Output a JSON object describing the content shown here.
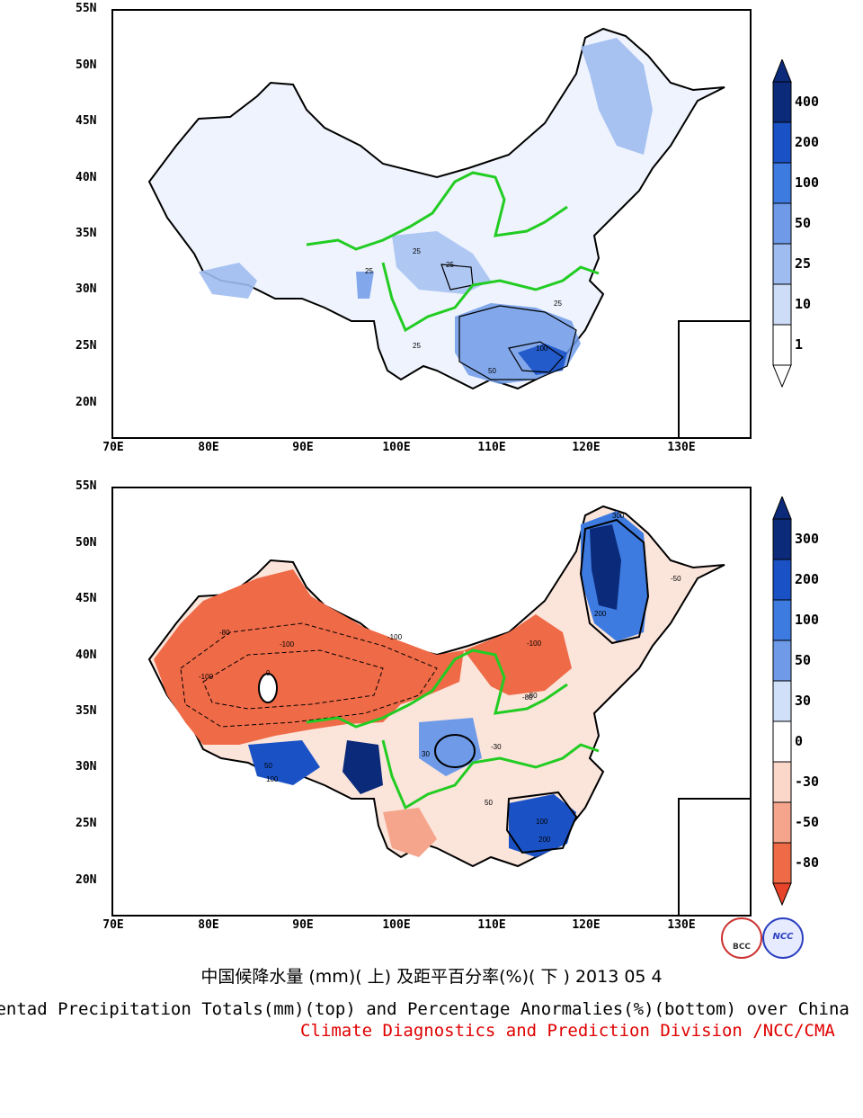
{
  "lat_labels": [
    "55N",
    "50N",
    "45N",
    "40N",
    "35N",
    "30N",
    "25N",
    "20N"
  ],
  "lon_labels": [
    "70E",
    "80E",
    "90E",
    "100E",
    "110E",
    "120E",
    "130E"
  ],
  "top_panel": {
    "variable": "Precipitation",
    "unit": "mm",
    "colorbar_labels": [
      "400",
      "200",
      "100",
      "50",
      "25",
      "10",
      "1"
    ],
    "colorbar_colors": [
      "#0b2a7a",
      "#1a52c6",
      "#3e7be0",
      "#6e9ae8",
      "#9fbcf0",
      "#cddcf7",
      "#ffffff"
    ],
    "contour_labels": [
      "25",
      "25",
      "25",
      "25",
      "25",
      "50",
      "100"
    ]
  },
  "bottom_panel": {
    "variable": "Percentage Anomaly",
    "unit": "%",
    "colorbar_labels": [
      "300",
      "200",
      "100",
      "50",
      "30",
      "0",
      "-30",
      "-50",
      "-80"
    ],
    "colorbar_colors": [
      "#0b2a7a",
      "#1a52c6",
      "#3e7be0",
      "#6e9ae8",
      "#cfe0f8",
      "#ffffff",
      "#fbd7c9",
      "#f5a58b",
      "#ef6a47",
      "#e8442a"
    ],
    "contour_labels": [
      "-100",
      "-80",
      "-100",
      "-100",
      "-80",
      "-30",
      "-100",
      "300",
      "200",
      "100",
      "50",
      "30",
      "0",
      "100",
      "200",
      "-50",
      "-80",
      "50"
    ]
  },
  "caption_cn": "中国候降水量 (mm)( 上) 及距平百分率(%)( 下 ) 2013 05 4",
  "caption_en": "Pentad Precipitation Totals(mm)(top) and Percentage Anormalies(%)(bottom) over China",
  "caption_division": "Climate Diagnostics and Prediction Division /NCC/CMA",
  "logos": {
    "left": "BCC",
    "right": "NCC"
  },
  "colors": {
    "border": "#000000",
    "river": "#22cc22",
    "division_text": "#e00000"
  }
}
